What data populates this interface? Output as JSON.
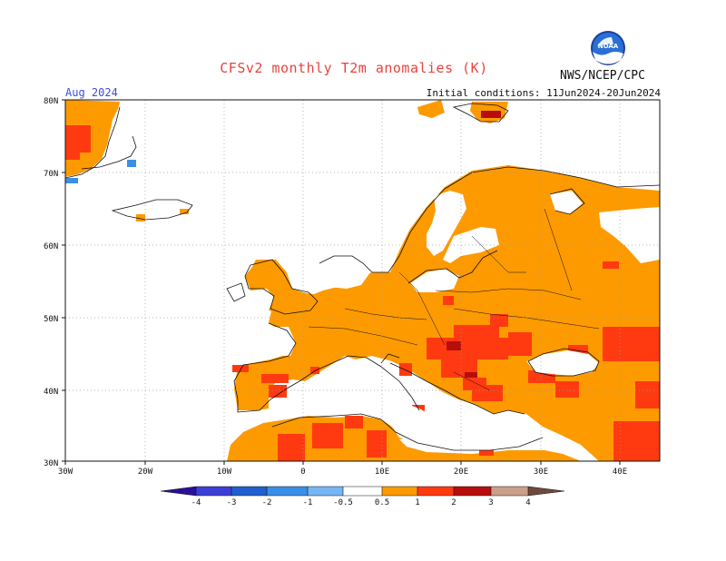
{
  "title": "CFSv2 monthly T2m anomalies (K)",
  "organization": "NWS/NCEP/CPC",
  "logo_text": "NOAA",
  "target_month": "Aug 2024",
  "initial_conditions": "Initial conditions: 11Jun2024-20Jun2024",
  "lat_labels": [
    "30N",
    "40N",
    "50N",
    "60N",
    "70N",
    "80N"
  ],
  "lon_labels": [
    "30W",
    "20W",
    "10W",
    "0",
    "10E",
    "20E",
    "30E",
    "40E"
  ],
  "colorbar": {
    "ticks": [
      "-4",
      "-3",
      "-2",
      "-1",
      "-0.5",
      "0.5",
      "1",
      "2",
      "3",
      "4"
    ],
    "colors": [
      "#2a0f9a",
      "#3c3fd6",
      "#1f5fcf",
      "#3a8ee6",
      "#76b6f4",
      "#ffffff",
      "#fd9a00",
      "#ff3a10",
      "#b80d0d",
      "#caa08b",
      "#6e4a3c"
    ]
  },
  "anomaly_colors": {
    "above_0.5": "#fd9a00",
    "above_1": "#ff3a10",
    "above_2": "#b80d0d",
    "below_-0.5": "#76b6f4",
    "below_-1": "#3a8ee6"
  }
}
